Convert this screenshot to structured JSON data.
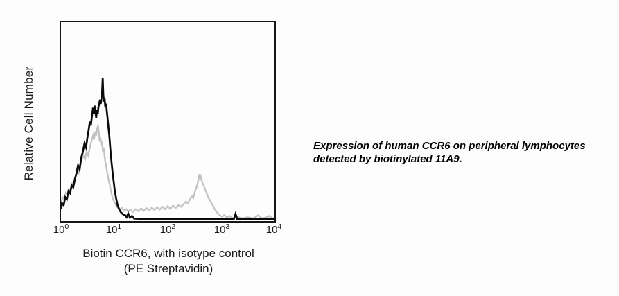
{
  "caption": {
    "line1": "Expression of human CCR6 on peripheral lymphocytes",
    "line2": "detected by biotinylated 11A9."
  },
  "chart_data": {
    "type": "line",
    "subtype": "flow-cytometry-histogram-overlay",
    "title": "",
    "grid": false,
    "legend": "none",
    "x_axis": {
      "scale": "log10",
      "range_exp": [
        0,
        4
      ],
      "title_line1": "Biotin CCR6, with isotype control",
      "title_line2": "(PE Streptavidin)",
      "ticks": [
        {
          "base": "10",
          "exp": "0"
        },
        {
          "base": "10",
          "exp": "1"
        },
        {
          "base": "10",
          "exp": "2"
        },
        {
          "base": "10",
          "exp": "3"
        },
        {
          "base": "10",
          "exp": "4"
        }
      ]
    },
    "y_axis": {
      "label": "Relative Cell Number",
      "ticks": "none",
      "relative_height_range": [
        0,
        1
      ]
    },
    "series": [
      {
        "id": "gray-trace",
        "name": "gray trace (bimodal: negative peak ~10^0.7 h0.48, positive peak ~10^2.6 h0.24)",
        "color": "#c2c2c2",
        "stroke_width": 2.3,
        "points_logx_relheight": [
          [
            0.0,
            0.09
          ],
          [
            0.03,
            0.12
          ],
          [
            0.06,
            0.11
          ],
          [
            0.09,
            0.14
          ],
          [
            0.12,
            0.13
          ],
          [
            0.15,
            0.16
          ],
          [
            0.18,
            0.15
          ],
          [
            0.21,
            0.19
          ],
          [
            0.24,
            0.18
          ],
          [
            0.27,
            0.22
          ],
          [
            0.3,
            0.25
          ],
          [
            0.33,
            0.24
          ],
          [
            0.36,
            0.28
          ],
          [
            0.39,
            0.31
          ],
          [
            0.42,
            0.33
          ],
          [
            0.45,
            0.31
          ],
          [
            0.48,
            0.35
          ],
          [
            0.51,
            0.33
          ],
          [
            0.54,
            0.37
          ],
          [
            0.57,
            0.4
          ],
          [
            0.6,
            0.43
          ],
          [
            0.62,
            0.41
          ],
          [
            0.64,
            0.45
          ],
          [
            0.66,
            0.43
          ],
          [
            0.68,
            0.47
          ],
          [
            0.695,
            0.48
          ],
          [
            0.71,
            0.44
          ],
          [
            0.725,
            0.4
          ],
          [
            0.74,
            0.42
          ],
          [
            0.755,
            0.38
          ],
          [
            0.77,
            0.4
          ],
          [
            0.785,
            0.35
          ],
          [
            0.8,
            0.37
          ],
          [
            0.815,
            0.33
          ],
          [
            0.83,
            0.3
          ],
          [
            0.85,
            0.27
          ],
          [
            0.87,
            0.24
          ],
          [
            0.89,
            0.21
          ],
          [
            0.91,
            0.185
          ],
          [
            0.93,
            0.16
          ],
          [
            0.95,
            0.135
          ],
          [
            0.97,
            0.115
          ],
          [
            1.0,
            0.095
          ],
          [
            1.03,
            0.08
          ],
          [
            1.06,
            0.068
          ],
          [
            1.1,
            0.058
          ],
          [
            1.14,
            0.066
          ],
          [
            1.18,
            0.052
          ],
          [
            1.22,
            0.06
          ],
          [
            1.26,
            0.048
          ],
          [
            1.3,
            0.058
          ],
          [
            1.35,
            0.046
          ],
          [
            1.4,
            0.06
          ],
          [
            1.45,
            0.05
          ],
          [
            1.5,
            0.064
          ],
          [
            1.55,
            0.052
          ],
          [
            1.6,
            0.066
          ],
          [
            1.65,
            0.054
          ],
          [
            1.7,
            0.068
          ],
          [
            1.75,
            0.056
          ],
          [
            1.8,
            0.07
          ],
          [
            1.85,
            0.058
          ],
          [
            1.9,
            0.072
          ],
          [
            1.95,
            0.06
          ],
          [
            2.0,
            0.075
          ],
          [
            2.05,
            0.062
          ],
          [
            2.1,
            0.078
          ],
          [
            2.15,
            0.066
          ],
          [
            2.2,
            0.08
          ],
          [
            2.25,
            0.072
          ],
          [
            2.3,
            0.086
          ],
          [
            2.34,
            0.098
          ],
          [
            2.38,
            0.09
          ],
          [
            2.42,
            0.112
          ],
          [
            2.45,
            0.126
          ],
          [
            2.48,
            0.118
          ],
          [
            2.51,
            0.15
          ],
          [
            2.54,
            0.17
          ],
          [
            2.56,
            0.19
          ],
          [
            2.575,
            0.21
          ],
          [
            2.59,
            0.235
          ],
          [
            2.605,
            0.215
          ],
          [
            2.62,
            0.225
          ],
          [
            2.64,
            0.2
          ],
          [
            2.67,
            0.18
          ],
          [
            2.7,
            0.16
          ],
          [
            2.73,
            0.14
          ],
          [
            2.76,
            0.12
          ],
          [
            2.8,
            0.1
          ],
          [
            2.84,
            0.08
          ],
          [
            2.88,
            0.06
          ],
          [
            2.92,
            0.045
          ],
          [
            2.96,
            0.032
          ],
          [
            3.02,
            0.022
          ],
          [
            3.06,
            0.032
          ],
          [
            3.1,
            0.018
          ],
          [
            3.16,
            0.026
          ],
          [
            3.22,
            0.014
          ],
          [
            3.3,
            0.022
          ],
          [
            3.4,
            0.014
          ],
          [
            3.5,
            0.02
          ],
          [
            3.6,
            0.014
          ],
          [
            3.7,
            0.03
          ],
          [
            3.76,
            0.014
          ],
          [
            3.84,
            0.018
          ],
          [
            3.9,
            0.026
          ],
          [
            3.96,
            0.014
          ],
          [
            4.0,
            0.016
          ]
        ]
      },
      {
        "id": "black-trace",
        "name": "black trace (single negative peak ~10^0.8, h0.72, baseline to 10^4)",
        "color": "#0b0b0b",
        "stroke_width": 2.7,
        "points_logx_relheight": [
          [
            0.0,
            0.06
          ],
          [
            0.02,
            0.09
          ],
          [
            0.05,
            0.08
          ],
          [
            0.08,
            0.12
          ],
          [
            0.11,
            0.11
          ],
          [
            0.14,
            0.15
          ],
          [
            0.17,
            0.14
          ],
          [
            0.2,
            0.18
          ],
          [
            0.23,
            0.17
          ],
          [
            0.26,
            0.21
          ],
          [
            0.29,
            0.24
          ],
          [
            0.32,
            0.28
          ],
          [
            0.35,
            0.26
          ],
          [
            0.38,
            0.32
          ],
          [
            0.41,
            0.35
          ],
          [
            0.44,
            0.39
          ],
          [
            0.47,
            0.37
          ],
          [
            0.5,
            0.43
          ],
          [
            0.52,
            0.46
          ],
          [
            0.54,
            0.5
          ],
          [
            0.56,
            0.48
          ],
          [
            0.58,
            0.53
          ],
          [
            0.6,
            0.57
          ],
          [
            0.615,
            0.54
          ],
          [
            0.63,
            0.58
          ],
          [
            0.645,
            0.55
          ],
          [
            0.66,
            0.52
          ],
          [
            0.675,
            0.56
          ],
          [
            0.69,
            0.54
          ],
          [
            0.7,
            0.57
          ],
          [
            0.715,
            0.59
          ],
          [
            0.73,
            0.61
          ],
          [
            0.745,
            0.59
          ],
          [
            0.76,
            0.62
          ],
          [
            0.77,
            0.645
          ],
          [
            0.782,
            0.72
          ],
          [
            0.792,
            0.64
          ],
          [
            0.802,
            0.6
          ],
          [
            0.815,
            0.62
          ],
          [
            0.83,
            0.575
          ],
          [
            0.845,
            0.59
          ],
          [
            0.86,
            0.55
          ],
          [
            0.875,
            0.51
          ],
          [
            0.89,
            0.47
          ],
          [
            0.905,
            0.43
          ],
          [
            0.92,
            0.38
          ],
          [
            0.935,
            0.33
          ],
          [
            0.95,
            0.29
          ],
          [
            0.965,
            0.25
          ],
          [
            0.98,
            0.215
          ],
          [
            1.0,
            0.17
          ],
          [
            1.02,
            0.135
          ],
          [
            1.04,
            0.105
          ],
          [
            1.06,
            0.08
          ],
          [
            1.09,
            0.06
          ],
          [
            1.12,
            0.045
          ],
          [
            1.16,
            0.035
          ],
          [
            1.2,
            0.03
          ],
          [
            1.23,
            0.02
          ],
          [
            1.26,
            0.038
          ],
          [
            1.29,
            0.018
          ],
          [
            1.33,
            0.026
          ],
          [
            1.37,
            0.013
          ],
          [
            1.45,
            0.012
          ],
          [
            1.6,
            0.012
          ],
          [
            2.0,
            0.012
          ],
          [
            2.5,
            0.012
          ],
          [
            3.0,
            0.012
          ],
          [
            3.24,
            0.012
          ],
          [
            3.27,
            0.036
          ],
          [
            3.3,
            0.012
          ],
          [
            3.6,
            0.012
          ],
          [
            4.0,
            0.012
          ]
        ]
      }
    ]
  }
}
